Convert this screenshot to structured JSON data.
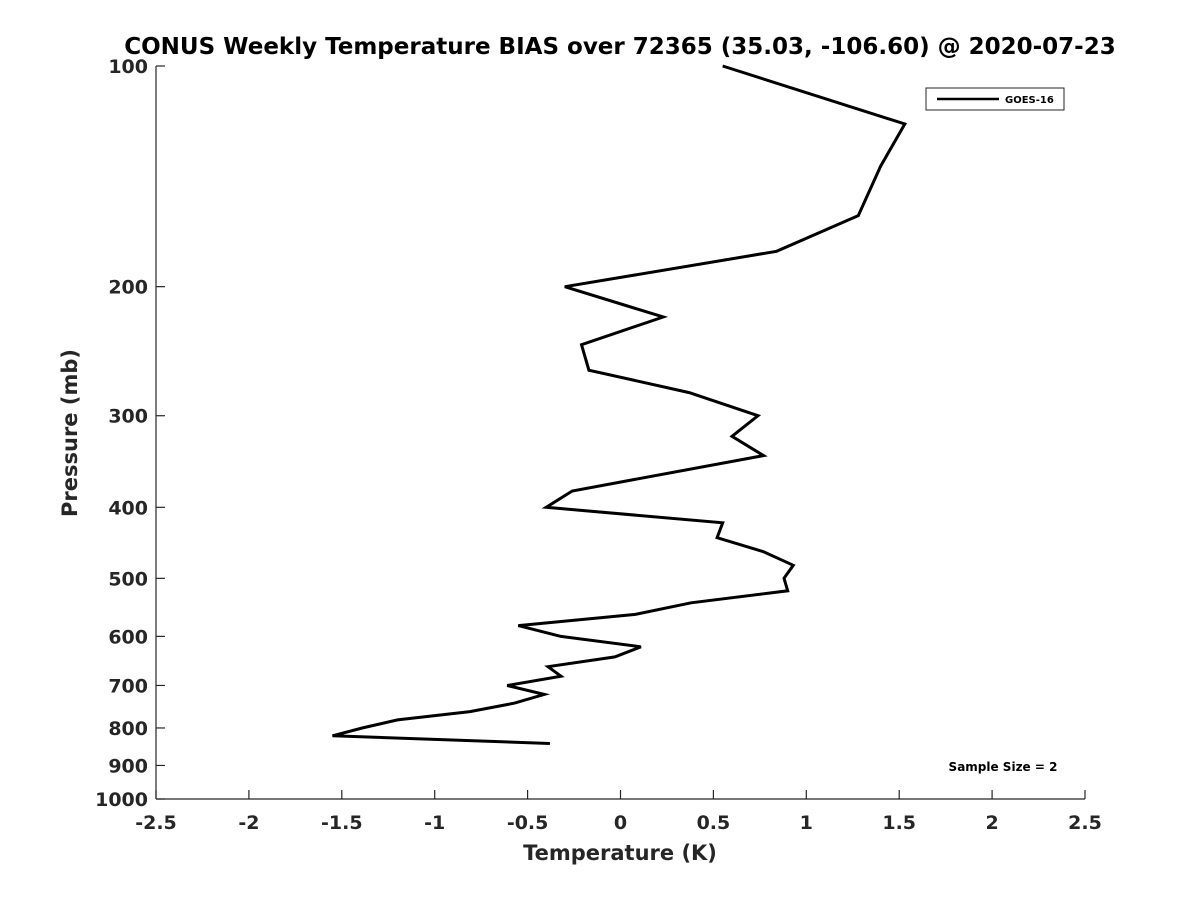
{
  "chart_data": {
    "type": "line",
    "title": "CONUS Weekly Temperature BIAS over 72365 (35.03, -106.60) @ 2020-07-23",
    "xlabel": "Temperature (K)",
    "ylabel": "Pressure (mb)",
    "xlim": [
      -2.5,
      2.5
    ],
    "ylim": [
      100,
      1000
    ],
    "y_scale": "log",
    "y_reversed": true,
    "x_ticks": [
      -2.5,
      -2,
      -1.5,
      -1,
      -0.5,
      0,
      0.5,
      1,
      1.5,
      2,
      2.5
    ],
    "x_tick_labels": [
      "-2.5",
      "-2",
      "-1.5",
      "-1",
      "-0.5",
      "0",
      "0.5",
      "1",
      "1.5",
      "2",
      "2.5"
    ],
    "y_ticks": [
      100,
      200,
      300,
      400,
      500,
      600,
      700,
      800,
      900,
      1000
    ],
    "y_tick_labels": [
      "100",
      "200",
      "300",
      "400",
      "500",
      "600",
      "700",
      "800",
      "900",
      "1000"
    ],
    "grid": false,
    "legend_position": "top-right",
    "annotation": "Sample Size = 2",
    "colors": {
      "series": "#000000",
      "axis": "#262626"
    },
    "series": [
      {
        "name": "GOES-16",
        "points": [
          {
            "x": 0.55,
            "y": 100
          },
          {
            "x": 1.53,
            "y": 120
          },
          {
            "x": 1.4,
            "y": 137
          },
          {
            "x": 1.28,
            "y": 160
          },
          {
            "x": 0.84,
            "y": 179
          },
          {
            "x": -0.3,
            "y": 200
          },
          {
            "x": 0.23,
            "y": 220
          },
          {
            "x": -0.21,
            "y": 240
          },
          {
            "x": -0.17,
            "y": 260
          },
          {
            "x": 0.37,
            "y": 279
          },
          {
            "x": 0.74,
            "y": 300
          },
          {
            "x": 0.6,
            "y": 320
          },
          {
            "x": 0.77,
            "y": 340
          },
          {
            "x": -0.26,
            "y": 380
          },
          {
            "x": -0.4,
            "y": 400
          },
          {
            "x": 0.55,
            "y": 420
          },
          {
            "x": 0.52,
            "y": 440
          },
          {
            "x": 0.77,
            "y": 460
          },
          {
            "x": 0.93,
            "y": 480
          },
          {
            "x": 0.88,
            "y": 500
          },
          {
            "x": 0.9,
            "y": 520
          },
          {
            "x": 0.38,
            "y": 540
          },
          {
            "x": 0.08,
            "y": 560
          },
          {
            "x": -0.55,
            "y": 580
          },
          {
            "x": -0.32,
            "y": 600
          },
          {
            "x": 0.11,
            "y": 620
          },
          {
            "x": -0.03,
            "y": 640
          },
          {
            "x": -0.39,
            "y": 660
          },
          {
            "x": -0.32,
            "y": 680
          },
          {
            "x": -0.61,
            "y": 700
          },
          {
            "x": -0.41,
            "y": 720
          },
          {
            "x": -0.57,
            "y": 740
          },
          {
            "x": -0.81,
            "y": 760
          },
          {
            "x": -1.2,
            "y": 780
          },
          {
            "x": -1.39,
            "y": 800
          },
          {
            "x": -1.55,
            "y": 820
          },
          {
            "x": -0.38,
            "y": 840
          }
        ]
      }
    ]
  }
}
